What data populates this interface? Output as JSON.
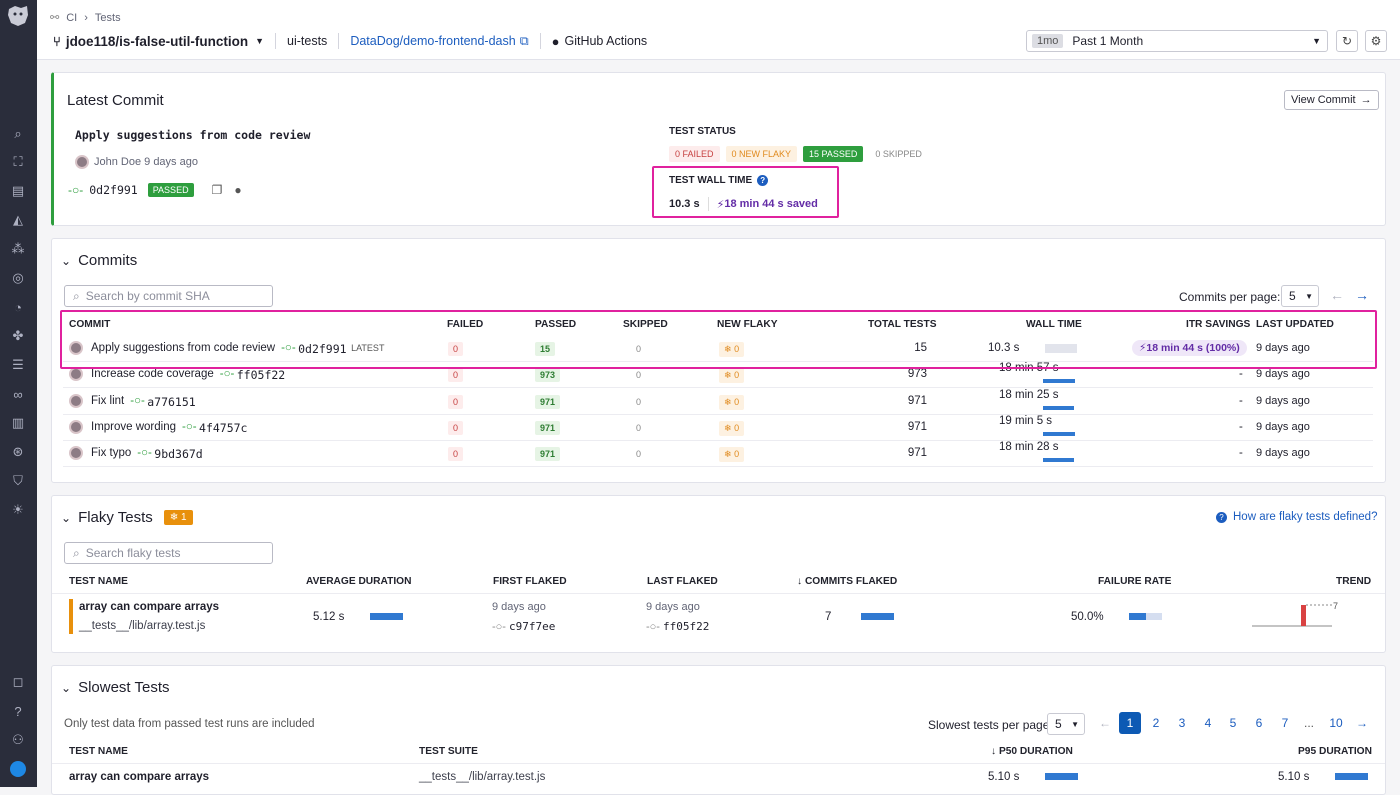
{
  "breadcrumb": {
    "root": "CI",
    "current": "Tests"
  },
  "header": {
    "branch": "jdoe118/is-false-util-function",
    "service": "ui-tests",
    "repo": "DataDog/demo-frontend-dash",
    "provider": "GitHub Actions"
  },
  "time": {
    "short": "1mo",
    "label": "Past 1 Month"
  },
  "latest": {
    "title": "Latest Commit",
    "view_label": "View Commit",
    "message": "Apply suggestions from code review",
    "author": "John Doe 9 days ago",
    "sha": "0d2f991",
    "status": "PASSED",
    "test_status_label": "TEST STATUS",
    "failed": "0 FAILED",
    "new_flaky": "0 NEW FLAKY",
    "passed": "15 PASSED",
    "skipped": "0 SKIPPED",
    "wall_label": "TEST WALL TIME",
    "wall_value": "10.3 s",
    "saved": "18 min 44 s saved"
  },
  "commits": {
    "title": "Commits",
    "search_placeholder": "Search by commit SHA",
    "per_page_label": "Commits per page:",
    "per_page": "5",
    "headers": {
      "commit": "COMMIT",
      "failed": "FAILED",
      "passed": "PASSED",
      "skipped": "SKIPPED",
      "new_flaky": "NEW FLAKY",
      "total": "TOTAL TESTS",
      "wall": "WALL TIME",
      "itr": "ITR SAVINGS",
      "updated": "LAST UPDATED"
    },
    "latest_tag": "LATEST",
    "rows": [
      {
        "msg": "Apply suggestions from code review",
        "sha": "0d2f991",
        "failed": "0",
        "passed": "15",
        "skipped": "0",
        "flaky": "0",
        "total": "15",
        "wall": "10.3 s",
        "itr": "18 min 44 s (100%)",
        "updated": "9 days ago",
        "wall_fraction": 0.01
      },
      {
        "msg": "Increase code coverage",
        "sha": "ff05f22",
        "failed": "0",
        "passed": "973",
        "skipped": "0",
        "flaky": "0",
        "total": "973",
        "wall": "18 min 57 s",
        "itr": "-",
        "updated": "9 days ago",
        "wall_fraction": 1.0
      },
      {
        "msg": "Fix lint",
        "sha": "a776151",
        "failed": "0",
        "passed": "971",
        "skipped": "0",
        "flaky": "0",
        "total": "971",
        "wall": "18 min 25 s",
        "itr": "-",
        "updated": "9 days ago",
        "wall_fraction": 0.97
      },
      {
        "msg": "Improve wording",
        "sha": "4f4757c",
        "failed": "0",
        "passed": "971",
        "skipped": "0",
        "flaky": "0",
        "total": "971",
        "wall": "19 min 5 s",
        "itr": "-",
        "updated": "9 days ago",
        "wall_fraction": 1.0
      },
      {
        "msg": "Fix typo",
        "sha": "9bd367d",
        "failed": "0",
        "passed": "971",
        "skipped": "0",
        "flaky": "0",
        "total": "971",
        "wall": "18 min 28 s",
        "itr": "-",
        "updated": "9 days ago",
        "wall_fraction": 0.97
      }
    ]
  },
  "flaky": {
    "title": "Flaky Tests",
    "count": "1",
    "help": "How are flaky tests defined?",
    "search_placeholder": "Search flaky tests",
    "headers": {
      "name": "TEST NAME",
      "avg": "AVERAGE DURATION",
      "first": "FIRST FLAKED",
      "last": "LAST FLAKED",
      "commits": "COMMITS FLAKED",
      "rate": "FAILURE RATE",
      "trend": "TREND"
    },
    "row": {
      "name": "array can compare arrays",
      "suite": "__tests__/lib/array.test.js",
      "avg": "5.12 s",
      "first_when": "9 days ago",
      "first_sha": "c97f7ee",
      "last_when": "9 days ago",
      "last_sha": "ff05f22",
      "commits": "7",
      "rate": "50.0%",
      "rate_fraction": 0.5,
      "trend_max": "7"
    }
  },
  "slowest": {
    "title": "Slowest Tests",
    "note": "Only test data from passed test runs are included",
    "per_page_label": "Slowest tests per page:",
    "per_page": "5",
    "pages": [
      "1",
      "2",
      "3",
      "4",
      "5",
      "6",
      "7",
      "...",
      "10"
    ],
    "headers": {
      "name": "TEST NAME",
      "suite": "TEST SUITE",
      "p50": "P50 DURATION",
      "p95": "P95 DURATION"
    },
    "row": {
      "name": "array can compare arrays",
      "suite": "__tests__/lib/array.test.js",
      "p50": "5.10 s",
      "p95": "5.10 s"
    }
  },
  "colors": {
    "accent": "#e0219e",
    "brand": "#632ca6",
    "link": "#1c5dbf",
    "passed": "#2e9e3e",
    "flaky": "#e8900c"
  }
}
